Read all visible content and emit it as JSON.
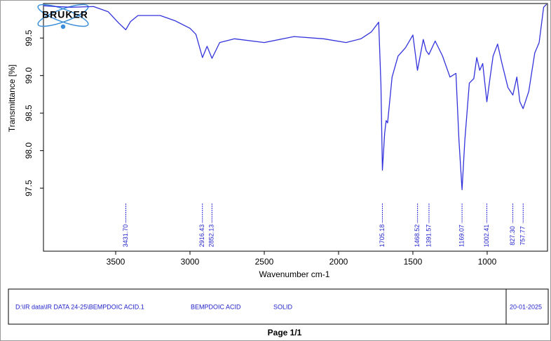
{
  "chart_data": {
    "type": "line",
    "logo": "BRUKER",
    "xlabel": "Wavenumber cm-1",
    "ylabel": "Transmittance [%]",
    "color": "#3333dd",
    "xlim": [
      3986,
      594
    ],
    "ylim": [
      96.66,
      99.96
    ],
    "xticks": [
      3500,
      3000,
      2500,
      2000,
      1500,
      1000
    ],
    "yticks": [
      97.5,
      {
        "value": 98,
        "label": "98.0"
      },
      98.5,
      {
        "value": 99,
        "label": "99.0"
      },
      99.5
    ],
    "x": [
      3986,
      3900,
      3800,
      3650,
      3550,
      3480,
      3432,
      3400,
      3350,
      3200,
      3100,
      3000,
      2960,
      2916,
      2885,
      2852,
      2800,
      2700,
      2500,
      2300,
      2100,
      1950,
      1850,
      1780,
      1730,
      1715,
      1705,
      1690,
      1680,
      1670,
      1640,
      1600,
      1550,
      1500,
      1469,
      1430,
      1410,
      1392,
      1350,
      1300,
      1250,
      1210,
      1190,
      1169,
      1150,
      1120,
      1090,
      1070,
      1050,
      1030,
      1002,
      980,
      960,
      930,
      900,
      860,
      827,
      800,
      780,
      758,
      720,
      680,
      650,
      620,
      600
    ],
    "values": [
      99.93,
      99.92,
      99.91,
      99.92,
      99.85,
      99.7,
      99.61,
      99.72,
      99.8,
      99.8,
      99.73,
      99.63,
      99.55,
      99.24,
      99.39,
      99.23,
      99.44,
      99.49,
      99.44,
      99.52,
      99.49,
      99.44,
      99.49,
      99.58,
      99.71,
      98.88,
      97.74,
      98.23,
      98.4,
      98.37,
      98.98,
      99.26,
      99.37,
      99.54,
      99.07,
      99.48,
      99.33,
      99.28,
      99.46,
      99.26,
      98.98,
      99.03,
      98.14,
      97.48,
      98.14,
      98.9,
      98.96,
      99.24,
      99.07,
      99.16,
      98.65,
      98.98,
      99.26,
      99.42,
      99.16,
      98.84,
      98.74,
      98.98,
      98.65,
      98.56,
      98.79,
      99.3,
      99.44,
      99.91,
      99.95
    ],
    "peaks": [
      3431.7,
      2916.43,
      2852.13,
      1705.18,
      1468.52,
      1391.57,
      1169.07,
      1002.41,
      827.3,
      757.77
    ],
    "peak_labels": [
      "3431.70",
      "2916.43",
      "2852.13",
      "1705.18",
      "1468.52",
      "1391.57",
      "1169.07",
      "1002.41",
      "827.30",
      "757.77"
    ]
  },
  "footer": {
    "path": "D:\\IR data\\IR DATA 24-25\\BEMPDOIC ACID.1",
    "sample": "BEMPDOIC ACID",
    "state": "SOLID",
    "date": "20-01-2025",
    "page": "Page 1/1"
  }
}
